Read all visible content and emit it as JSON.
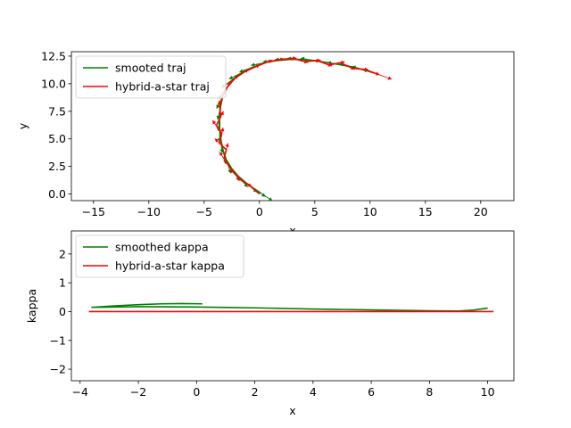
{
  "chart_data": [
    {
      "type": "line",
      "xlabel": "x",
      "ylabel": "y",
      "xlim": [
        -17,
        23
      ],
      "ylim": [
        -0.6,
        12.9
      ],
      "xticks": [
        -15,
        -10,
        -5,
        0,
        5,
        10,
        15,
        20
      ],
      "yticks": [
        0.0,
        2.5,
        5.0,
        7.5,
        10.0,
        12.5
      ],
      "xtick_labels": [
        "−15",
        "−10",
        "−5",
        "0",
        "5",
        "10",
        "15",
        "20"
      ],
      "ytick_labels": [
        "0.0",
        "2.5",
        "5.0",
        "7.5",
        "10.0",
        "12.5"
      ],
      "legend_position": "upper-left",
      "series": [
        {
          "name": "smooted traj",
          "color": "#008000",
          "x": [
            0.1,
            -0.5,
            -1.2,
            -1.9,
            -2.5,
            -3.0,
            -3.3,
            -3.5,
            -3.6,
            -3.6,
            -3.5,
            -3.3,
            -2.9,
            -2.4,
            -1.6,
            -0.6,
            0.5,
            1.6,
            2.7,
            3.8,
            5.0,
            6.2,
            7.4,
            8.5,
            9.6,
            10.6
          ],
          "y": [
            0.1,
            0.5,
            1.0,
            1.6,
            2.3,
            3.1,
            4.0,
            5.0,
            6.0,
            7.0,
            8.0,
            8.9,
            9.7,
            10.4,
            11.0,
            11.5,
            11.9,
            12.1,
            12.2,
            12.2,
            12.1,
            11.9,
            11.7,
            11.5,
            11.2,
            10.9
          ]
        },
        {
          "name": "hybrid-a-star traj",
          "color": "#ff0000",
          "x": [
            0.0,
            -0.8,
            -1.6,
            -2.3,
            -2.8,
            -3.2,
            -3.0,
            -3.6,
            -3.4,
            -3.9,
            -3.5,
            -3.6,
            -3.3,
            -2.9,
            -2.2,
            -1.3,
            -0.2,
            0.8,
            1.9,
            3.0,
            4.1,
            5.2,
            6.3,
            7.3,
            8.4,
            9.5,
            10.6
          ],
          "y": [
            0.0,
            0.7,
            1.2,
            1.9,
            2.6,
            3.2,
            4.0,
            4.6,
            5.5,
            6.2,
            7.0,
            8.0,
            8.9,
            9.7,
            10.5,
            11.1,
            11.6,
            12.0,
            12.2,
            12.3,
            12.0,
            12.1,
            11.7,
            11.9,
            11.4,
            11.3,
            10.9
          ]
        }
      ],
      "arrows": {
        "green_color": "#008000",
        "red_color": "#ff0000"
      }
    },
    {
      "type": "line",
      "xlabel": "x",
      "ylabel": "kappa",
      "xlim": [
        -4.3,
        10.9
      ],
      "ylim": [
        -2.4,
        2.8
      ],
      "xticks": [
        -4,
        -2,
        0,
        2,
        4,
        6,
        8,
        10
      ],
      "yticks": [
        -2,
        -1,
        0,
        1,
        2
      ],
      "xtick_labels": [
        "−4",
        "−2",
        "0",
        "2",
        "4",
        "6",
        "8",
        "10"
      ],
      "ytick_labels": [
        "−2",
        "−1",
        "0",
        "1",
        "2"
      ],
      "legend_position": "upper-left",
      "series": [
        {
          "name": "smoothed kappa",
          "color": "#008000",
          "x": [
            0.2,
            -0.5,
            -1.2,
            -2.0,
            -2.8,
            -3.6,
            -3.4,
            -2.0,
            0.0,
            2.0,
            4.0,
            6.0,
            8.0,
            9.0,
            9.5,
            10.0
          ],
          "y": [
            0.27,
            0.28,
            0.27,
            0.24,
            0.2,
            0.15,
            0.15,
            0.17,
            0.16,
            0.13,
            0.09,
            0.06,
            0.03,
            0.02,
            0.05,
            0.12
          ]
        },
        {
          "name": "hybrid-a-star kappa",
          "color": "#ff0000",
          "x": [
            -3.7,
            10.2
          ],
          "y": [
            0.0,
            0.0
          ]
        }
      ]
    }
  ]
}
